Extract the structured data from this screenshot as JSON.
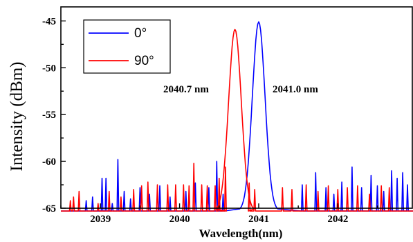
{
  "chart_data": {
    "type": "line",
    "xlabel": "Wavelength(nm)",
    "ylabel": "Intensity (dBm)",
    "xlim": [
      2038.5,
      2042.95
    ],
    "ylim": [
      -65,
      -43.5
    ],
    "xticks": [
      2039,
      2040,
      2041,
      2042
    ],
    "yticks": [
      -45,
      -50,
      -55,
      -60,
      -65
    ],
    "legend_position": "top-left",
    "grid": false,
    "annotations": [
      "2040.7 nm",
      "2041.0 nm"
    ],
    "series": [
      {
        "name": "0°",
        "color": "#0000ff",
        "peak": {
          "x": 2041.0,
          "y": -45.1,
          "width_nm": 0.08
        },
        "noise_spikes": [
          [
            2038.82,
            -64.2
          ],
          [
            2038.9,
            -63.8
          ],
          [
            2039.02,
            -61.8
          ],
          [
            2039.07,
            -61.8
          ],
          [
            2039.15,
            -64.5
          ],
          [
            2039.22,
            -59.8
          ],
          [
            2039.3,
            -63.2
          ],
          [
            2039.38,
            -64.0
          ],
          [
            2039.5,
            -62.8
          ],
          [
            2039.62,
            -63.5
          ],
          [
            2039.75,
            -62.6
          ],
          [
            2039.88,
            -63.8
          ],
          [
            2040.08,
            -63.2
          ],
          [
            2040.2,
            -62.3
          ],
          [
            2040.37,
            -62.8
          ],
          [
            2040.47,
            -60.0
          ],
          [
            2040.55,
            -63.5
          ],
          [
            2041.55,
            -62.5
          ],
          [
            2041.72,
            -61.2
          ],
          [
            2041.85,
            -62.8
          ],
          [
            2041.95,
            -63.5
          ],
          [
            2042.05,
            -62.2
          ],
          [
            2042.18,
            -60.6
          ],
          [
            2042.3,
            -62.8
          ],
          [
            2042.42,
            -61.5
          ],
          [
            2042.5,
            -62.6
          ],
          [
            2042.58,
            -63.2
          ],
          [
            2042.68,
            -61.0
          ],
          [
            2042.75,
            -61.8
          ],
          [
            2042.82,
            -61.2
          ],
          [
            2042.88,
            -62.5
          ]
        ]
      },
      {
        "name": "90°",
        "color": "#ff0000",
        "peak": {
          "x": 2040.7,
          "y": -45.9,
          "width_nm": 0.08
        },
        "noise_spikes": [
          [
            2038.62,
            -64.2
          ],
          [
            2038.66,
            -63.8
          ],
          [
            2038.73,
            -63.2
          ],
          [
            2038.97,
            -64.5
          ],
          [
            2039.11,
            -63.2
          ],
          [
            2039.26,
            -63.8
          ],
          [
            2039.42,
            -63.0
          ],
          [
            2039.52,
            -62.6
          ],
          [
            2039.6,
            -62.2
          ],
          [
            2039.72,
            -62.5
          ],
          [
            2039.85,
            -62.5
          ],
          [
            2039.95,
            -62.5
          ],
          [
            2040.05,
            -62.5
          ],
          [
            2040.12,
            -62.6
          ],
          [
            2040.18,
            -60.2
          ],
          [
            2040.28,
            -62.5
          ],
          [
            2040.35,
            -62.6
          ],
          [
            2040.45,
            -62.6
          ],
          [
            2040.5,
            -61.8
          ],
          [
            2040.58,
            -60.6
          ],
          [
            2040.88,
            -62.3
          ],
          [
            2040.95,
            -63.0
          ],
          [
            2041.3,
            -62.8
          ],
          [
            2041.42,
            -63.0
          ],
          [
            2041.6,
            -62.5
          ],
          [
            2041.75,
            -63.2
          ],
          [
            2041.88,
            -62.6
          ],
          [
            2042.0,
            -63.0
          ],
          [
            2042.12,
            -62.8
          ],
          [
            2042.25,
            -62.6
          ],
          [
            2042.4,
            -63.5
          ],
          [
            2042.55,
            -62.6
          ],
          [
            2042.65,
            -62.8
          ]
        ]
      }
    ]
  }
}
